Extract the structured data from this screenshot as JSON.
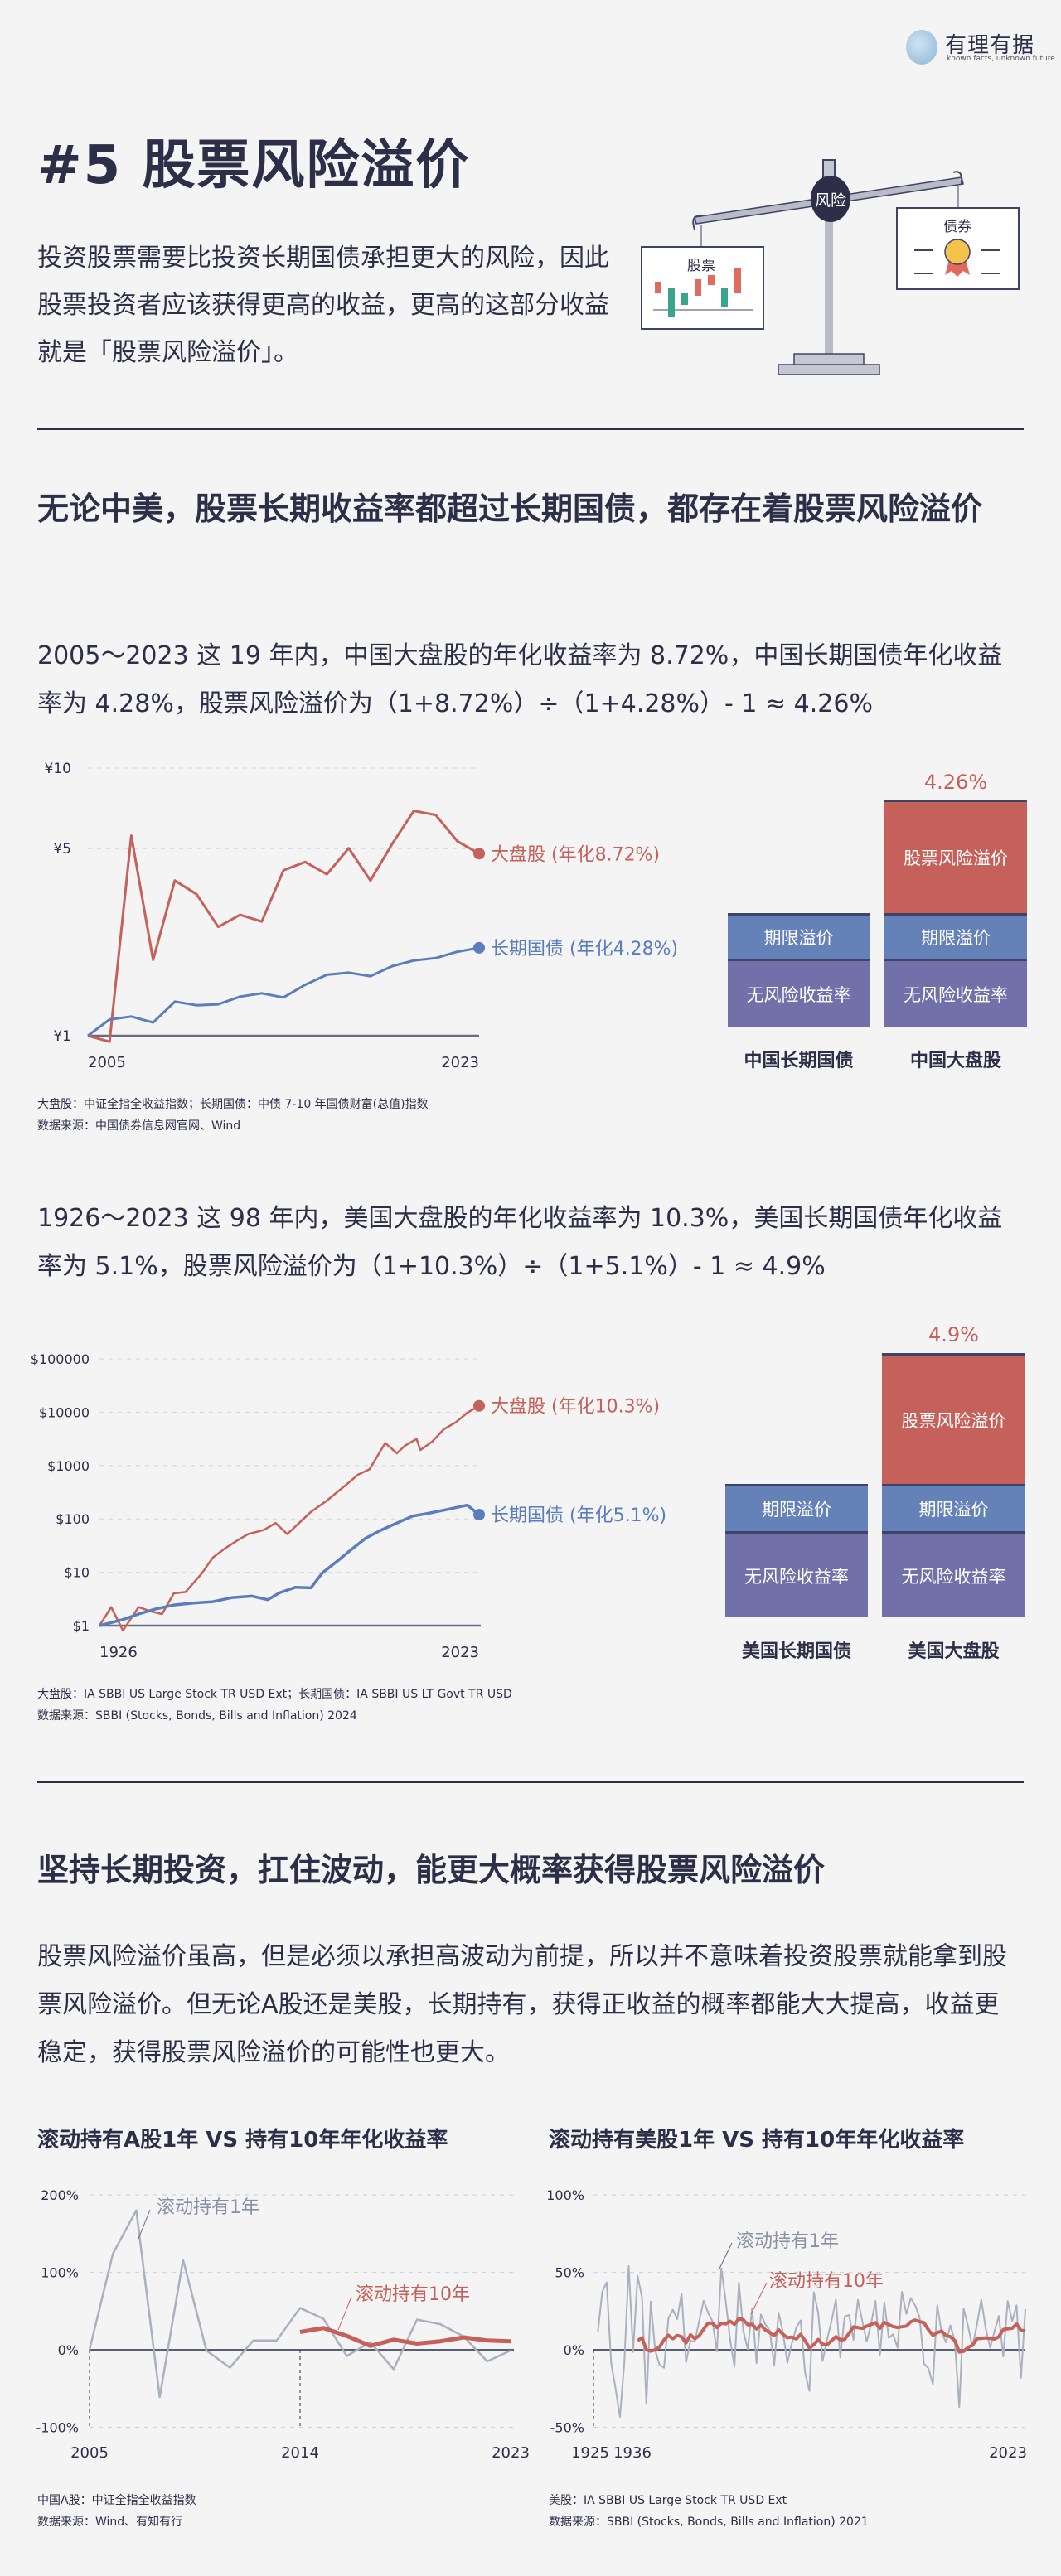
{
  "logo": {
    "name": "有理有据",
    "tagline": "known facts, unknown future"
  },
  "title": "#5 股票风险溢价",
  "intro": "投资股票需要比投资长期国债承担更大的风险，因此股票投资者应该获得更高的收益，更高的这部分收益就是「股票风险溢价」。",
  "illustration": {
    "pivot_label": "风险",
    "left_card": "股票",
    "right_card": "债券"
  },
  "section1": {
    "heading": "无论中美，股票长期收益率都超过长期国债，都存在着股票风险溢价",
    "china_text": "2005～2023 这 19 年内，中国大盘股的年化收益率为 8.72%，中国长期国债年化收益率为 4.28%，股票风险溢价为（1+8.72%）÷（1+4.28%）- 1 ≈ 4.26%",
    "china_notes": [
      "大盘股：中证全指全收益指数；长期国债：中债 7-10 年国债财富(总值)指数",
      "数据来源：中国债券信息网官网、Wind"
    ],
    "us_text": "1926～2023 这 98 年内，美国大盘股的年化收益率为 10.3%，美国长期国债年化收益率为 5.1%，股票风险溢价为（1+10.3%）÷（1+5.1%）- 1 ≈ 4.9%",
    "us_notes": [
      "大盘股：IA SBBI US Large Stock TR USD Ext；长期国债：IA SBBI US LT Govt TR USD",
      "数据来源：SBBI (Stocks, Bonds, Bills and Inflation) 2024"
    ]
  },
  "section2": {
    "heading": "坚持长期投资，扛住波动，能更大概率获得股票风险溢价",
    "text": "股票风险溢价虽高，但是必须以承担高波动为前提，所以并不意味着投资股票就能拿到股票风险溢价。但无论A股还是美股，长期持有，获得正收益的概率都能大大提高，收益更稳定，获得股票风险溢价的可能性也更大。",
    "cn_notes": [
      "中国A股：中证全指全收益指数",
      "数据来源：Wind、有知有行"
    ],
    "us_notes": [
      "美股：IA SBBI US Large Stock TR USD Ext",
      "数据来源：SBBI (Stocks, Bonds, Bills and Inflation) 2021"
    ]
  },
  "colors": {
    "red": "#c5615a",
    "blue": "#5b7dbb",
    "gray": "#a9b0bf",
    "navy": "#2d2f48",
    "purple": "#7270a8"
  },
  "chart_data": [
    {
      "type": "line",
      "title": "",
      "yscale": "log",
      "x": [
        2005,
        2006,
        2007,
        2008,
        2009,
        2010,
        2011,
        2012,
        2013,
        2014,
        2015,
        2016,
        2017,
        2018,
        2019,
        2020,
        2021,
        2022,
        2023
      ],
      "xticks": [
        "2005",
        "2023"
      ],
      "yticks": [
        "¥1",
        "¥5",
        "¥10"
      ],
      "ytick_values": [
        1,
        5,
        10
      ],
      "ylim": [
        1,
        10
      ],
      "series": [
        {
          "name": "大盘股 (年化8.72%)",
          "color": "#c5615a",
          "values": [
            1,
            0.95,
            5.59,
            1.92,
            3.8,
            3.38,
            2.55,
            2.83,
            2.67,
            4.15,
            4.46,
            4.01,
            5.02,
            3.8,
            5.21,
            6.92,
            6.68,
            5.33,
            4.79
          ]
        },
        {
          "name": "长期国债 (年化4.28%)",
          "color": "#5b7dbb",
          "values": [
            1,
            1.15,
            1.18,
            1.12,
            1.34,
            1.3,
            1.31,
            1.4,
            1.44,
            1.39,
            1.55,
            1.69,
            1.72,
            1.67,
            1.82,
            1.91,
            1.95,
            2.06,
            2.13
          ]
        }
      ]
    },
    {
      "type": "bar",
      "stacked": true,
      "categories": [
        "中国长期国债",
        "中国大盘股"
      ],
      "segments": [
        "无风险收益率",
        "期限溢价",
        "股票风险溢价"
      ],
      "premium_label": "4.26%"
    },
    {
      "type": "line",
      "yscale": "log",
      "xticks": [
        "1926",
        "2023"
      ],
      "yticks": [
        "$1",
        "$10",
        "$100",
        "$1000",
        "$10000",
        "$100000"
      ],
      "ytick_values": [
        1,
        10,
        100,
        1000,
        10000,
        100000
      ],
      "series": [
        {
          "name": "大盘股 (年化10.3%)",
          "color": "#c5615a",
          "x": [
            1926,
            1929,
            1932,
            1936,
            1939,
            1942,
            1945,
            1948,
            1952,
            1955,
            1958,
            1961,
            1964,
            1968,
            1971,
            1974,
            1977,
            1980,
            1984,
            1987,
            1990,
            1992,
            1995,
            1999,
            2002,
            2004,
            2007,
            2008,
            2011,
            2014,
            2017,
            2020,
            2023
          ],
          "values": [
            1,
            2.22,
            0.81,
            2.22,
            1.86,
            1.65,
            4.03,
            4.27,
            9.25,
            18.9,
            27.7,
            38.6,
            52,
            62,
            83.6,
            52,
            83.6,
            135,
            217,
            329,
            499,
            671,
            852,
            2640,
            1700,
            2340,
            3150,
            1960,
            2800,
            4790,
            6440,
            9770,
            13150
          ]
        },
        {
          "name": "长期国债 (年化5.1%)",
          "color": "#5b7dbb",
          "x": [
            1926,
            1932,
            1936,
            1940,
            1945,
            1950,
            1955,
            1960,
            1965,
            1969,
            1972,
            1976,
            1980,
            1983,
            1987,
            1990,
            1994,
            1998,
            2002,
            2006,
            2010,
            2015,
            2020,
            2023
          ],
          "values": [
            1,
            1.3,
            1.65,
            2.02,
            2.44,
            2.65,
            2.81,
            3.36,
            3.57,
            3.06,
            4.12,
            5.22,
            5.1,
            9.8,
            16.7,
            25.4,
            43.5,
            62,
            83.6,
            113,
            127,
            151,
            181,
            120
          ]
        }
      ]
    },
    {
      "type": "bar",
      "stacked": true,
      "categories": [
        "美国长期国债",
        "美国大盘股"
      ],
      "segments": [
        "无风险收益率",
        "期限溢价",
        "股票风险溢价"
      ],
      "premium_label": "4.9%"
    },
    {
      "type": "line",
      "title": "滚动持有A股1年 VS 持有10年年化收益率",
      "xticks": [
        "2005",
        "2014",
        "2023"
      ],
      "yticks": [
        "-100%",
        "0%",
        "100%",
        "200%"
      ],
      "ytick_values": [
        -100,
        0,
        100,
        200
      ],
      "ylim": [
        -100,
        200
      ],
      "series": [
        {
          "name": "滚动持有1年",
          "color": "#a9b0bf",
          "x": [
            2005,
            2006,
            2007,
            2008,
            2009,
            2010,
            2011,
            2012,
            2013,
            2014,
            2015,
            2016,
            2017,
            2018,
            2019,
            2020,
            2021,
            2022,
            2023
          ],
          "values": [
            0,
            124,
            180,
            -61,
            116,
            -1,
            -23,
            12,
            12,
            54,
            40,
            -8,
            10,
            -25,
            39,
            33,
            17,
            -15,
            -1
          ]
        },
        {
          "name": "滚动持有10年",
          "color": "#c5615a",
          "x": [
            2014,
            2015,
            2016,
            2017,
            2018,
            2019,
            2020,
            2021,
            2022,
            2023
          ],
          "values": [
            23,
            28,
            18,
            5,
            13,
            8,
            11,
            16,
            12,
            11
          ]
        }
      ]
    },
    {
      "type": "line",
      "title": "滚动持有美股1年 VS 持有10年年化收益率",
      "xticks": [
        "1925",
        "1936",
        "2023"
      ],
      "yticks": [
        "-50%",
        "0%",
        "50%",
        "100%"
      ],
      "ytick_values": [
        -50,
        0,
        50,
        100
      ],
      "ylim": [
        -50,
        100
      ],
      "series": [
        {
          "name": "滚动持有1年",
          "color": "#a9b0bf",
          "start_year": 1926,
          "values": [
            11.6,
            37.5,
            43.6,
            -8.4,
            -24.9,
            -43.3,
            -8.2,
            54.0,
            -1.4,
            47.7,
            33.9,
            -35.0,
            31.1,
            -0.4,
            -9.8,
            -11.6,
            20.3,
            25.9,
            19.8,
            36.4,
            -8.1,
            5.7,
            5.5,
            18.8,
            31.7,
            24.0,
            18.4,
            -1.0,
            52.6,
            31.6,
            6.6,
            -10.8,
            43.4,
            12.0,
            0.5,
            26.9,
            -8.7,
            22.8,
            16.5,
            12.5,
            -10.1,
            24.0,
            11.1,
            -8.5,
            4.0,
            14.3,
            19.0,
            -14.7,
            -26.5,
            37.2,
            23.8,
            -7.2,
            6.6,
            18.4,
            32.4,
            -4.9,
            21.4,
            22.5,
            6.3,
            32.2,
            18.5,
            5.2,
            16.8,
            31.5,
            -3.2,
            30.6,
            7.7,
            10.0,
            1.3,
            37.4,
            23.1,
            33.4,
            28.6,
            21.0,
            -9.1,
            -11.9,
            -22.1,
            28.7,
            10.9,
            4.9,
            15.8,
            5.5,
            -37.0,
            26.5,
            15.1,
            2.1,
            16.0,
            32.4,
            13.7,
            1.4,
            12.0,
            21.8,
            -4.4,
            31.5,
            18.4,
            28.7,
            -18.1,
            26.3
          ]
        },
        {
          "name": "滚动持有10年",
          "color": "#c5615a",
          "derived": "trailing 10-year annualized",
          "start_year": 1936
        }
      ]
    }
  ]
}
